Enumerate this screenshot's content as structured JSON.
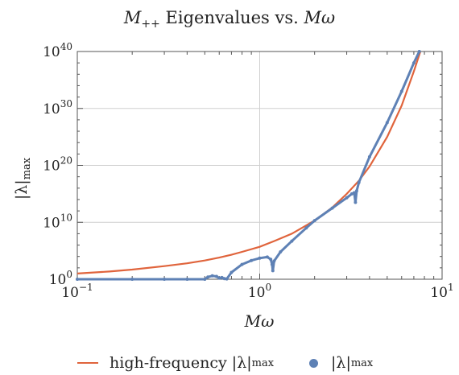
{
  "chart_data": {
    "type": "line",
    "title_main": "M",
    "title_sub": "++",
    "title_rest": " Eigenvalues vs. ",
    "title_var": "Mω",
    "xlabel": "Mω",
    "ylabel": "|λ|max",
    "ylabel_main": "|λ|",
    "ylabel_sub": "max",
    "xscale": "log",
    "yscale": "log",
    "xlim": [
      0.1,
      10
    ],
    "ylim": [
      1,
      1e+40
    ],
    "x_ticks": [
      {
        "base": "10",
        "exp": "−1",
        "value": 0.1
      },
      {
        "base": "10",
        "exp": "0",
        "value": 1
      },
      {
        "base": "10",
        "exp": "1",
        "value": 10
      }
    ],
    "y_ticks": [
      {
        "base": "10",
        "exp": "0",
        "value": 1
      },
      {
        "base": "10",
        "exp": "10",
        "value": 10000000000.0
      },
      {
        "base": "10",
        "exp": "20",
        "value": 1e+20
      },
      {
        "base": "10",
        "exp": "30",
        "value": 1e+30
      },
      {
        "base": "10",
        "exp": "40",
        "value": 1e+40
      }
    ],
    "grid": true,
    "legend_position": "bottom",
    "series": [
      {
        "name": "high-frequency |λ|max",
        "name_main": "high-frequency |λ|",
        "name_sub": "max",
        "kind": "line",
        "color": "#e0643c",
        "x": [
          0.1,
          0.15,
          0.2,
          0.3,
          0.4,
          0.5,
          0.6,
          0.7,
          0.8,
          1.0,
          1.2,
          1.5,
          2.0,
          2.5,
          3.0,
          3.5,
          4.0,
          5.0,
          6.0,
          7.0,
          7.6
        ],
        "y_exp": [
          1.0,
          1.35,
          1.7,
          2.3,
          2.8,
          3.3,
          3.8,
          4.3,
          4.8,
          5.7,
          6.7,
          8.0,
          10.3,
          12.6,
          15.0,
          17.3,
          19.8,
          25.0,
          30.5,
          36.5,
          40.0
        ]
      },
      {
        "name": "|λ|max",
        "name_main": "|λ|",
        "name_sub": "max",
        "kind": "scatter",
        "color": "#5e81b5",
        "x": [
          0.1,
          0.2,
          0.3,
          0.4,
          0.5,
          0.52,
          0.55,
          0.58,
          0.6,
          0.62,
          0.64,
          0.66,
          0.7,
          0.8,
          0.9,
          1.0,
          1.1,
          1.15,
          1.17,
          1.18,
          1.2,
          1.3,
          1.5,
          1.8,
          2.0,
          2.5,
          3.0,
          3.2,
          3.3,
          3.35,
          3.4,
          3.5,
          4.0,
          5.0,
          6.0,
          7.0,
          7.5
        ],
        "y_exp": [
          0.0,
          0.0,
          0.0,
          0.0,
          0.0,
          0.4,
          0.6,
          0.5,
          0.2,
          0.3,
          0.1,
          0.05,
          1.2,
          2.6,
          3.3,
          3.7,
          3.9,
          3.5,
          2.6,
          1.5,
          3.2,
          4.8,
          6.7,
          9.0,
          10.3,
          12.5,
          14.3,
          15.0,
          15.2,
          13.5,
          15.5,
          17.0,
          21.5,
          27.5,
          33.0,
          38.0,
          40.0
        ]
      }
    ]
  }
}
